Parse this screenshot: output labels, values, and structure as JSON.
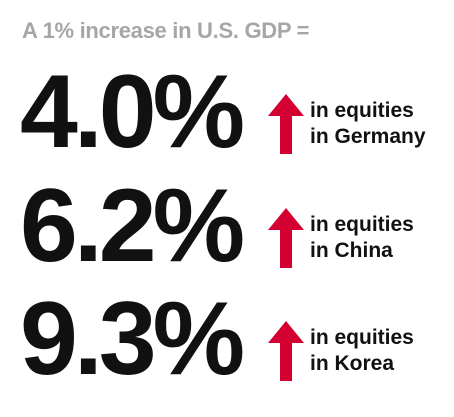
{
  "headline": "A 1% increase in U.S. GDP =",
  "colors": {
    "headline": "#a6a6a6",
    "text": "#111111",
    "arrow": "#d50032"
  },
  "stats": [
    {
      "value": "4.0%",
      "icon": "up-arrow-icon",
      "line1": "in equities",
      "line2": "in Germany"
    },
    {
      "value": "6.2%",
      "icon": "up-arrow-icon",
      "line1": "in equities",
      "line2": "in China"
    },
    {
      "value": "9.3%",
      "icon": "up-arrow-icon",
      "line1": "in equities",
      "line2": "in Korea"
    }
  ]
}
